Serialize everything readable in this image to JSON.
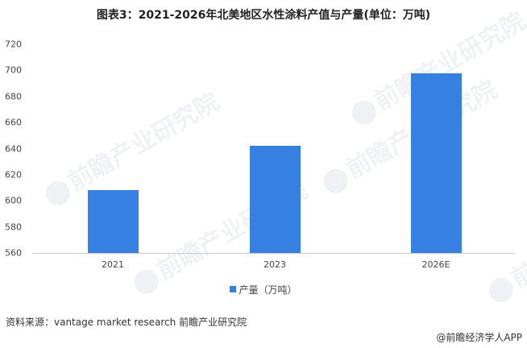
{
  "header": {
    "title": "图表3：2021-2026年北美地区水性涂料产值与产量(单位：万吨)"
  },
  "chart_data": {
    "type": "bar",
    "title": "图表3：2021-2026年北美地区水性涂料产值与产量(单位：万吨)",
    "xlabel": "",
    "ylabel": "",
    "categories": [
      "2021",
      "2023",
      "2026E"
    ],
    "series": [
      {
        "name": "产量（万吨）",
        "values": [
          608,
          642,
          698
        ],
        "color": "#3580e0"
      }
    ],
    "ylim": [
      560,
      720
    ],
    "yticks": [
      560,
      580,
      600,
      620,
      640,
      660,
      680,
      700,
      720
    ],
    "grid": false,
    "legend_position": "bottom"
  },
  "axis": {
    "yticks": [
      "720",
      "700",
      "680",
      "660",
      "640",
      "620",
      "600",
      "580",
      "560"
    ],
    "xticks": [
      "2021",
      "2023",
      "2026E"
    ]
  },
  "legend": {
    "label": "产量（万吨）"
  },
  "footer": {
    "source": "资料来源：vantage market research 前瞻产业研究院",
    "credit": "@前瞻经济学人APP"
  },
  "watermark": {
    "text": "前瞻产业研究院"
  }
}
